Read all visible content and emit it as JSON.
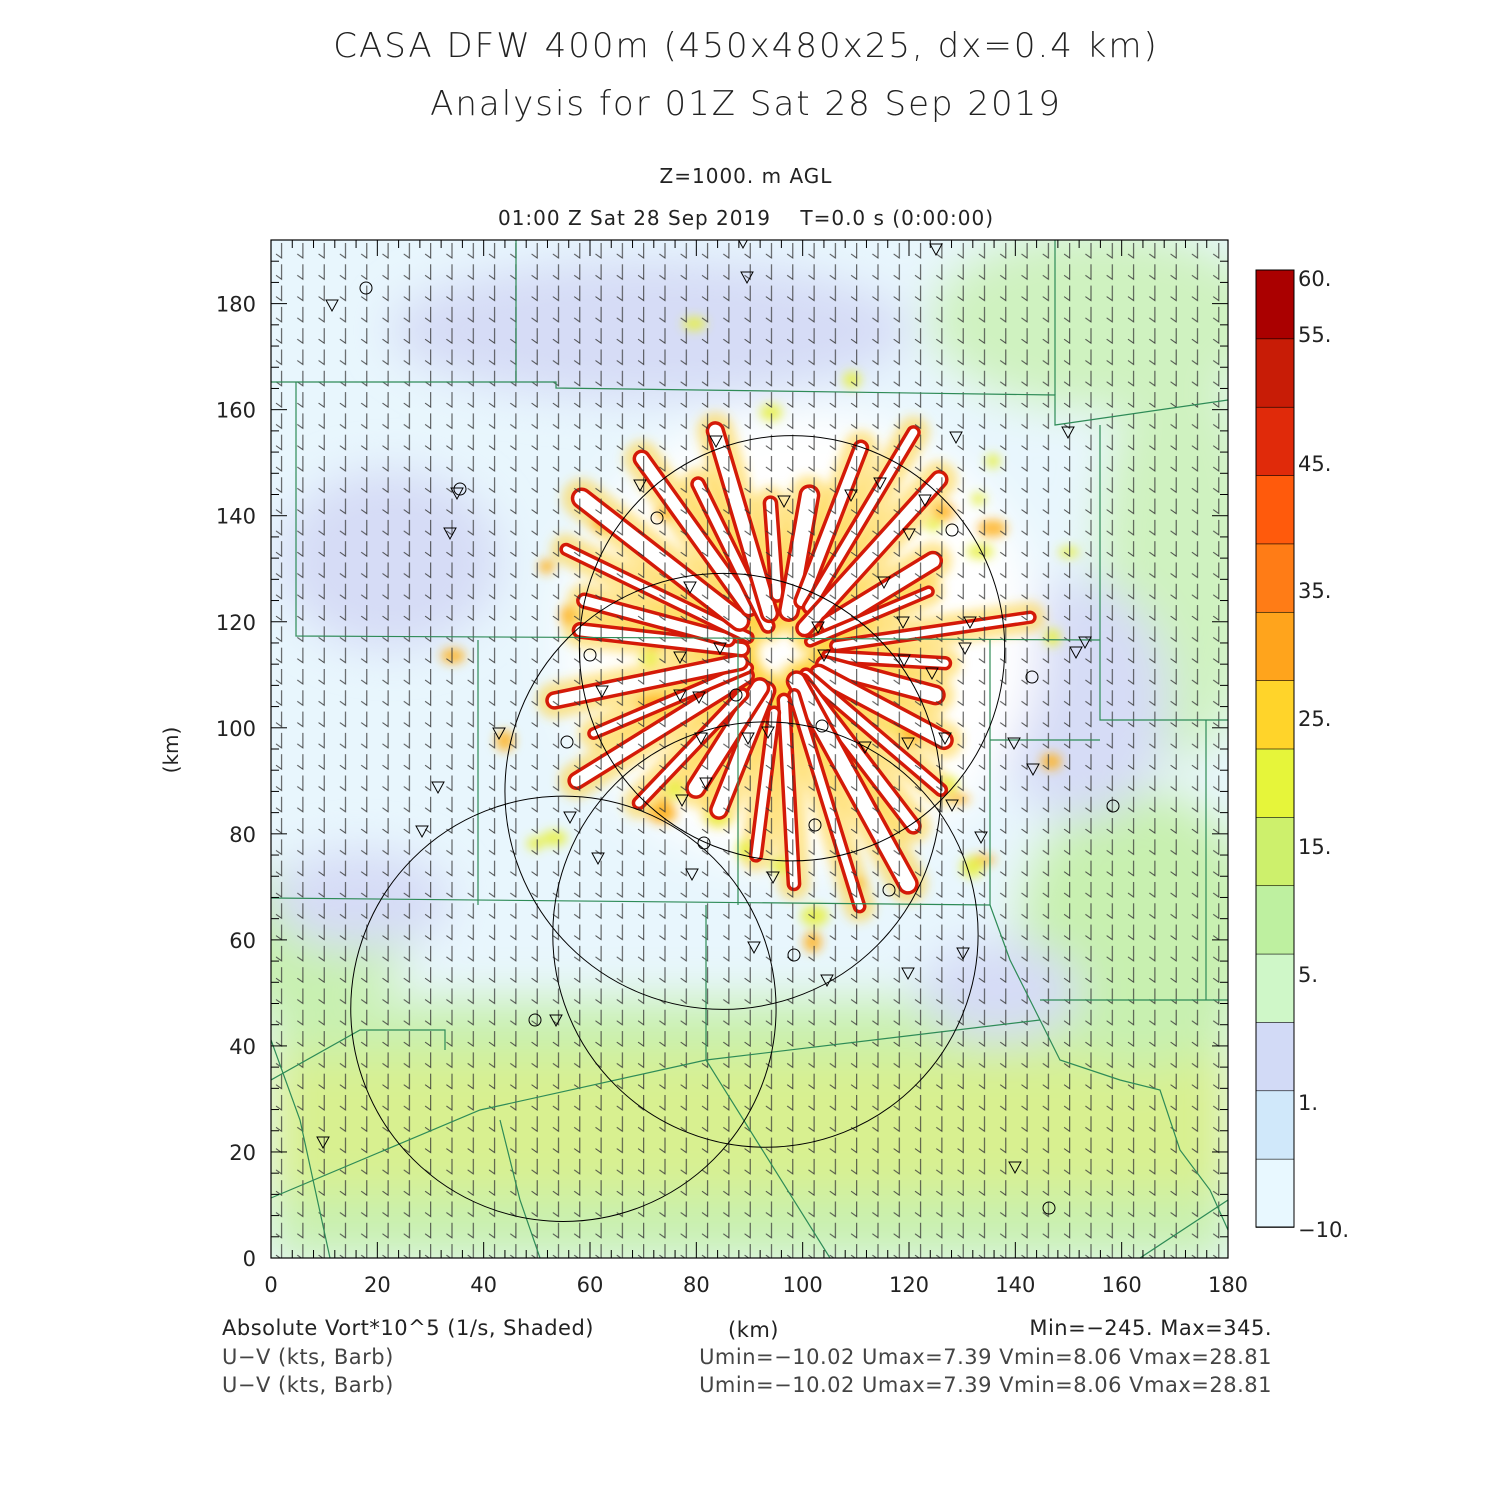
{
  "title": {
    "line1": "CASA DFW 400m (450x480x25, dx=0.4 km)",
    "line2": "Analysis for 01Z Sat 28 Sep 2019"
  },
  "subtitle": {
    "level": "Z=1000. m AGL",
    "time": "01:00 Z Sat 28 Sep 2019    T=0.0 s (0:00:00)"
  },
  "axes": {
    "xlabel": "(km)",
    "ylabel": "(km)",
    "x_ticks": [
      "0",
      "20",
      "40",
      "60",
      "80",
      "100",
      "120",
      "140",
      "160",
      "180"
    ],
    "y_ticks": [
      "0",
      "20",
      "40",
      "60",
      "80",
      "100",
      "120",
      "140",
      "160",
      "180"
    ]
  },
  "colorbar": {
    "labels": [
      "60.",
      "55.",
      "45.",
      "35.",
      "25.",
      "15.",
      "5.",
      "1.",
      "−10."
    ],
    "colors": [
      "#e8f8ff",
      "#d0e8fa",
      "#d2daf6",
      "#cff7c8",
      "#bef0a0",
      "#cdf06c",
      "#e6f53a",
      "#ffd42a",
      "#ffa41c",
      "#ff7c16",
      "#ff5a0c",
      "#e02a0a",
      "#c81c06",
      "#aa0000"
    ]
  },
  "footer": {
    "field1": "Absolute Vort*10^5 (1/s, Shaded)",
    "units": "(km)",
    "minmax": "Min=−245. Max=345.",
    "field2": "U−V (kts, Barb)",
    "stats2": "Umin=−10.02 Umax=7.39 Vmin=8.06 Vmax=28.81",
    "field3": "U−V (kts, Barb)",
    "stats3": "Umin=−10.02 Umax=7.39 Vmin=8.06 Vmax=28.81"
  },
  "chart_data": {
    "type": "heatmap",
    "xlim": [
      0,
      180
    ],
    "ylim": [
      0,
      192
    ],
    "center_km": [
      96,
      114
    ],
    "radar_rings": [
      {
        "cx": 98,
        "cy": 115,
        "r": 40
      },
      {
        "cx": 85,
        "cy": 88,
        "r": 41
      },
      {
        "cx": 93,
        "cy": 61,
        "r": 40
      },
      {
        "cx": 55,
        "cy": 47,
        "r": 40
      }
    ]
  }
}
